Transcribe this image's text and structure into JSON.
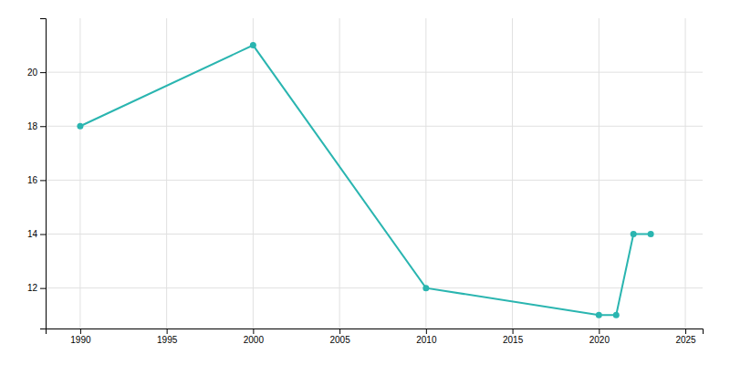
{
  "chart_data": {
    "type": "line",
    "x": [
      1990,
      2000,
      2010,
      2020,
      2021,
      2022,
      2023
    ],
    "values": [
      18,
      21,
      12,
      11,
      11,
      14,
      14
    ],
    "color": "#2ab5b0",
    "marker": "circle",
    "xlim": [
      1988,
      2026
    ],
    "ylim": [
      10.5,
      22
    ],
    "xticks": [
      1990,
      1995,
      2000,
      2005,
      2010,
      2015,
      2020,
      2025
    ],
    "yticks": [
      12,
      14,
      16,
      18,
      20
    ],
    "grid": true
  }
}
